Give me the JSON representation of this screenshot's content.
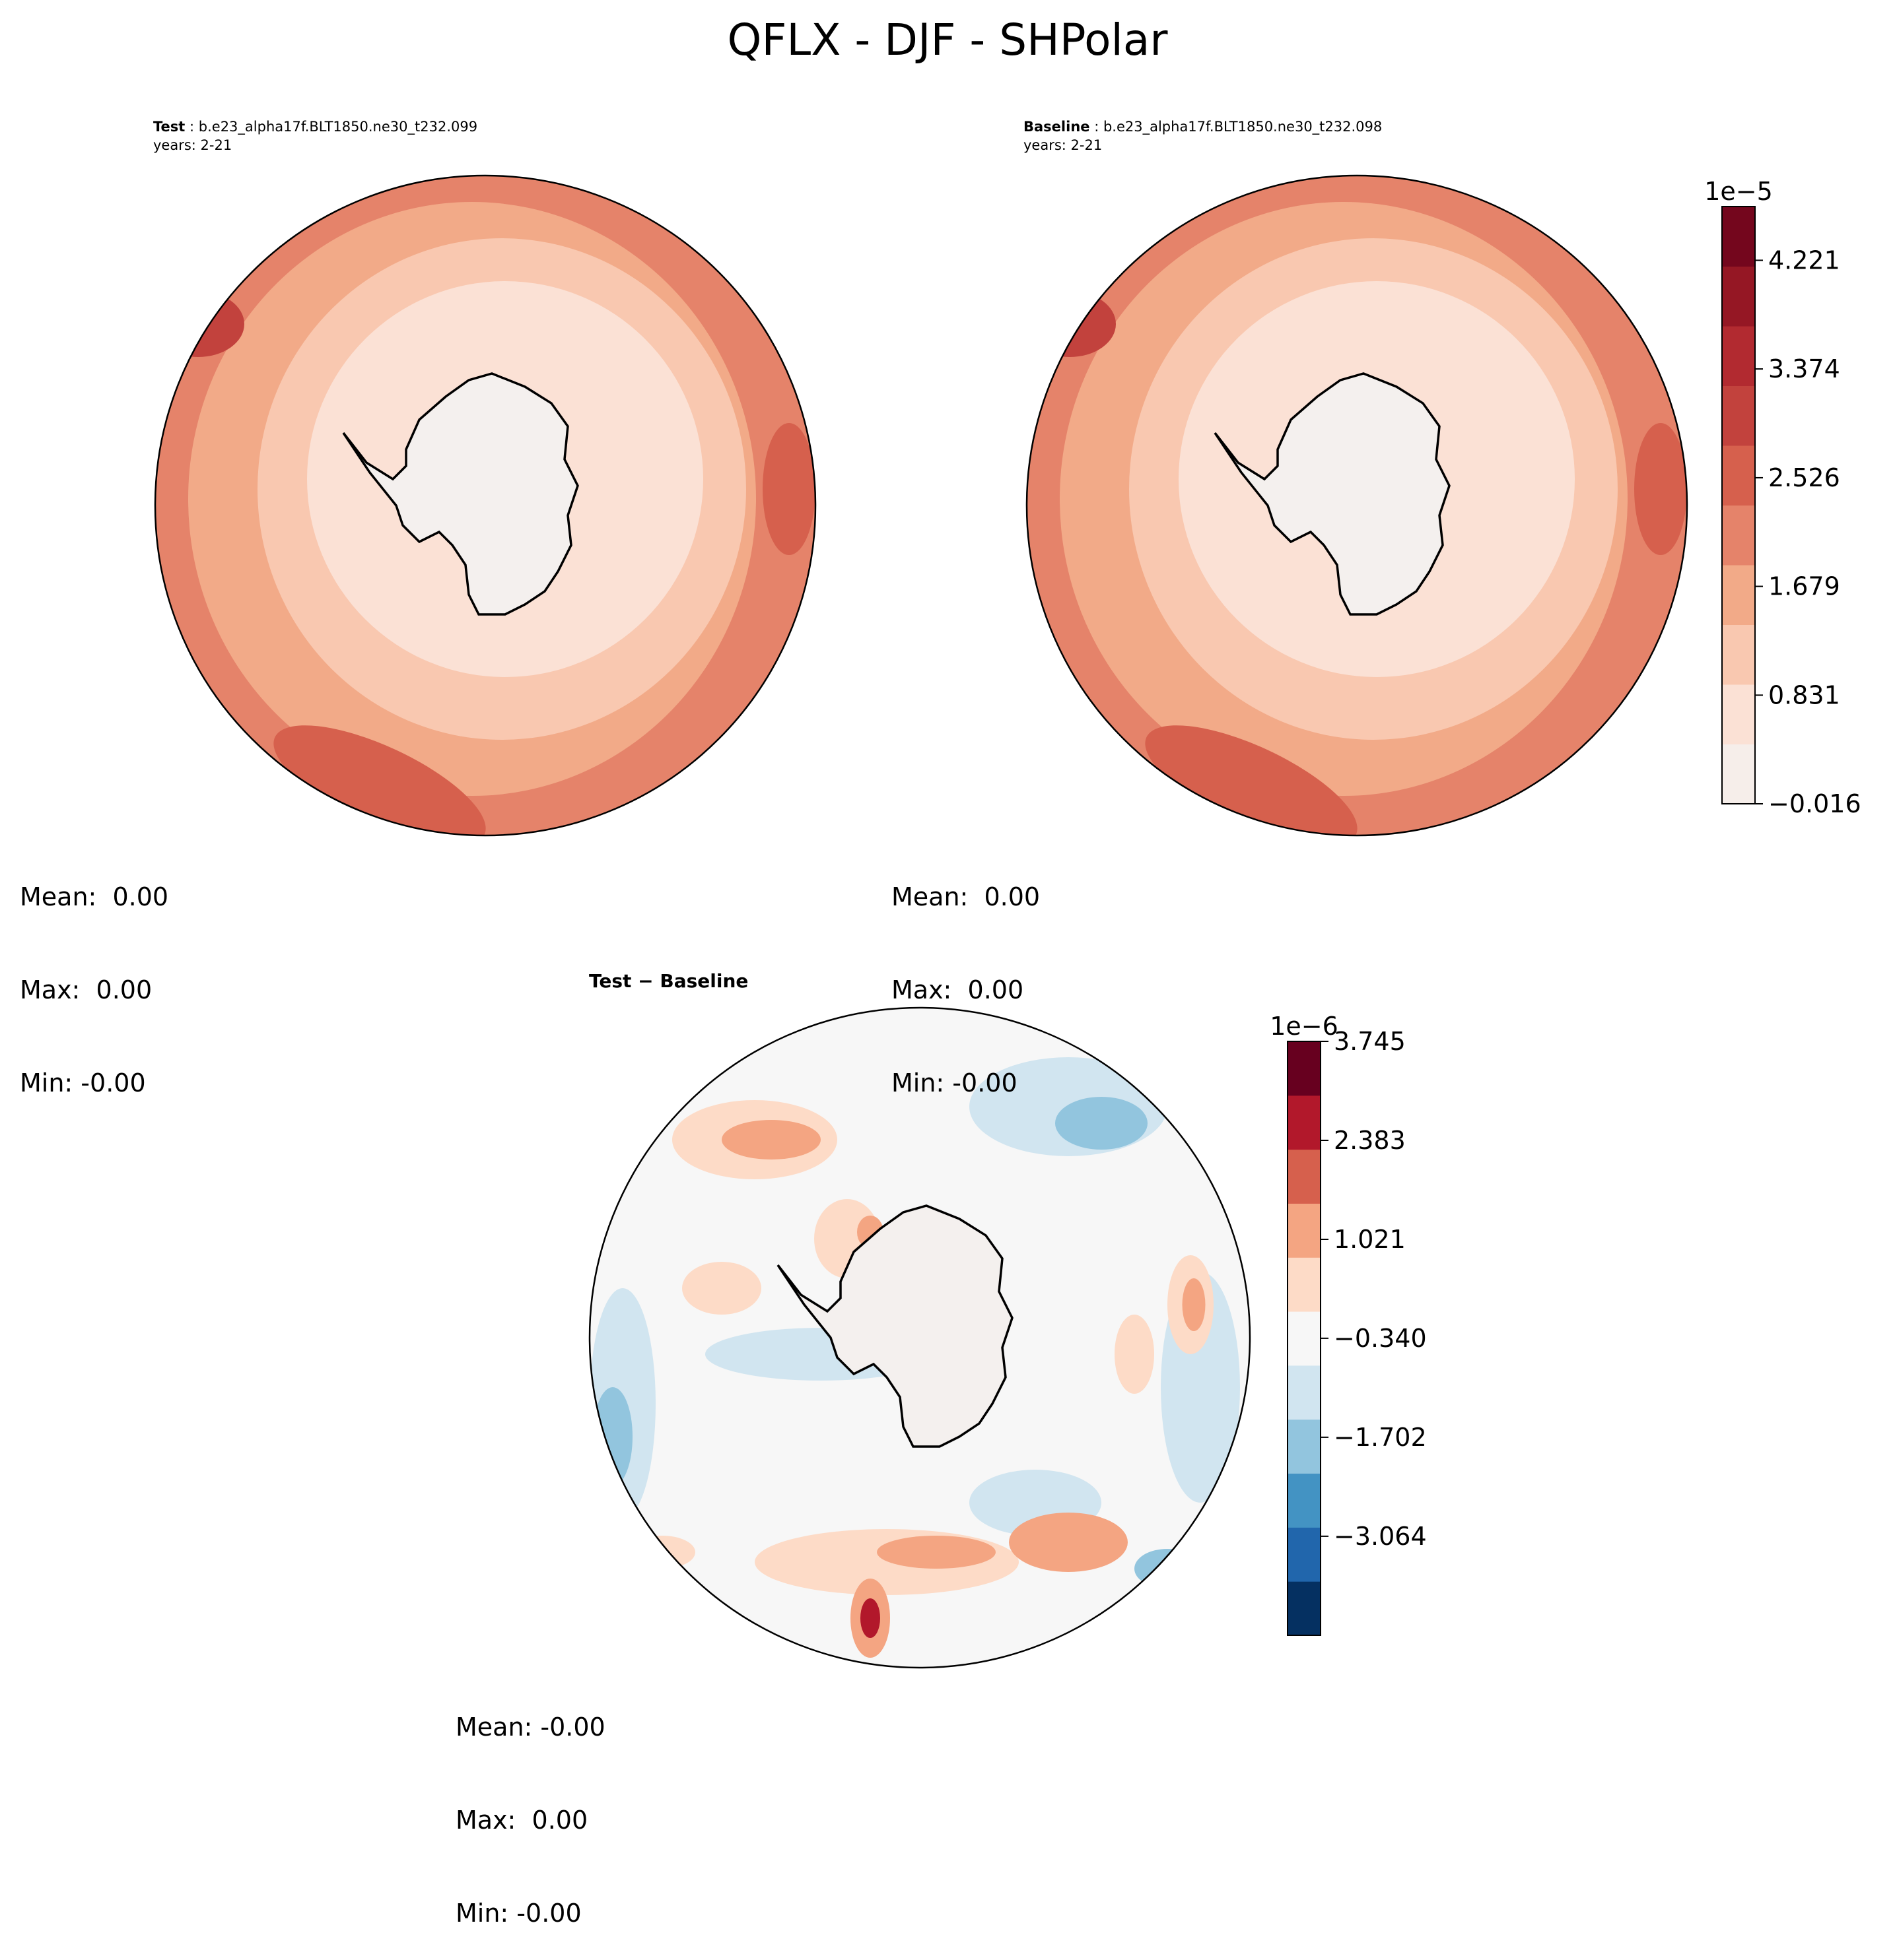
{
  "title": "QFLX - DJF - SHPolar",
  "panels": [
    {
      "id": "test",
      "label": "Test",
      "case": "b.e23_alpha17f.BLT1850.ne30_t232.099",
      "years": "years: 2-21",
      "stats": {
        "mean": "Mean:  0.00",
        "max": "Max:  0.00",
        "min": "Min: -0.00"
      }
    },
    {
      "id": "baseline",
      "label": "Baseline",
      "case": "b.e23_alpha17f.BLT1850.ne30_t232.098",
      "years": "years: 2-21",
      "stats": {
        "mean": "Mean:  0.00",
        "max": "Max:  0.00",
        "min": "Min: -0.00"
      }
    },
    {
      "id": "diff",
      "label": "Test − Baseline",
      "stats": {
        "mean": "Mean: -0.00",
        "max": "Max:  0.00",
        "min": "Min: -0.00"
      }
    }
  ],
  "colors": {
    "seq": [
      "#f6eeea",
      "#fbe1d5",
      "#f9c8b0",
      "#f2aa88",
      "#e5836a",
      "#d6604d",
      "#c2423d",
      "#b22a30",
      "#951724",
      "#74061d"
    ],
    "div": [
      "#053061",
      "#2166ac",
      "#4393c3",
      "#92c5de",
      "#d1e5f0",
      "#f7f7f7",
      "#fddbc7",
      "#f4a582",
      "#d6604d",
      "#b2182b",
      "#67001f"
    ],
    "land": "#f4f0ee"
  },
  "chart_data": [
    {
      "type": "heatmap",
      "panel": "test",
      "projection": "south polar stereographic",
      "title": "Test : b.e23_alpha17f.BLT1850.ne30_t232.099",
      "variable": "QFLX",
      "season": "DJF",
      "region": "SHPolar",
      "colorbar": {
        "exponent": "1e−5",
        "levels_e5": [
          -0.016,
          0.831,
          1.679,
          2.526,
          3.374,
          4.221
        ],
        "tick_labels": [
          "−0.016",
          "0.831",
          "1.679",
          "2.526",
          "3.374",
          "4.221"
        ],
        "range_e5": [
          -0.016,
          4.64
        ]
      },
      "mean": 0.0,
      "max": 0.0,
      "min": -0.0
    },
    {
      "type": "heatmap",
      "panel": "baseline",
      "projection": "south polar stereographic",
      "title": "Baseline : b.e23_alpha17f.BLT1850.ne30_t232.098",
      "variable": "QFLX",
      "season": "DJF",
      "region": "SHPolar",
      "colorbar": {
        "exponent": "1e−5",
        "levels_e5": [
          -0.016,
          0.831,
          1.679,
          2.526,
          3.374,
          4.221
        ],
        "tick_labels": [
          "−0.016",
          "0.831",
          "1.679",
          "2.526",
          "3.374",
          "4.221"
        ],
        "range_e5": [
          -0.016,
          4.64
        ]
      },
      "mean": 0.0,
      "max": 0.0,
      "min": -0.0
    },
    {
      "type": "heatmap",
      "panel": "diff",
      "projection": "south polar stereographic",
      "title": "Test − Baseline",
      "colorbar": {
        "exponent": "1e−6",
        "levels_e6": [
          -3.064,
          -1.702,
          -0.34,
          1.021,
          2.383,
          3.745
        ],
        "tick_labels": [
          "−3.064",
          "−1.702",
          "−0.340",
          "1.021",
          "2.383",
          "3.745"
        ],
        "range_e6": [
          -4.427,
          3.745
        ]
      },
      "mean": -0.0,
      "max": 0.0,
      "min": -0.0
    }
  ]
}
